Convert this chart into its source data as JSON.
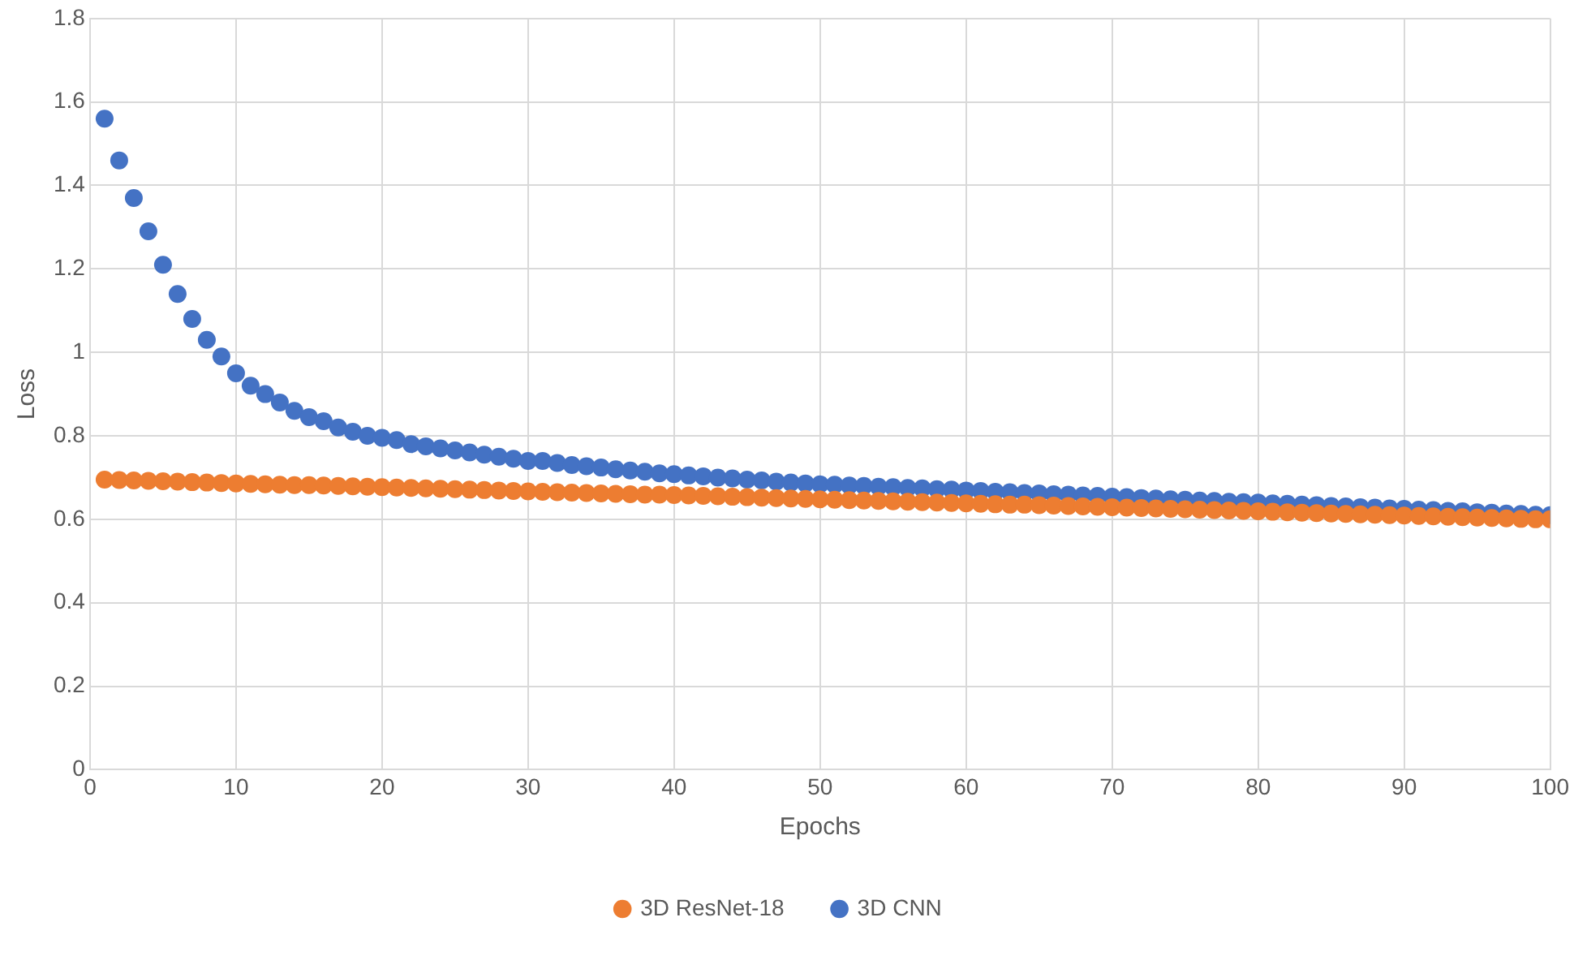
{
  "chart_data": {
    "type": "scatter",
    "xlabel": "Epochs",
    "ylabel": "Loss",
    "xlim": [
      0,
      100
    ],
    "xticks": [
      0,
      10,
      20,
      30,
      40,
      50,
      60,
      70,
      80,
      90,
      100
    ],
    "ylim": [
      0,
      1.8
    ],
    "yticks": [
      0,
      0.2,
      0.4,
      0.6,
      0.8,
      1,
      1.2,
      1.4,
      1.6,
      1.8
    ],
    "grid": true,
    "legend": "bottom",
    "marker": "circle",
    "x": [
      1,
      2,
      3,
      4,
      5,
      6,
      7,
      8,
      9,
      10,
      11,
      12,
      13,
      14,
      15,
      16,
      17,
      18,
      19,
      20,
      21,
      22,
      23,
      24,
      25,
      26,
      27,
      28,
      29,
      30,
      31,
      32,
      33,
      34,
      35,
      36,
      37,
      38,
      39,
      40,
      41,
      42,
      43,
      44,
      45,
      46,
      47,
      48,
      49,
      50,
      51,
      52,
      53,
      54,
      55,
      56,
      57,
      58,
      59,
      60,
      61,
      62,
      63,
      64,
      65,
      66,
      67,
      68,
      69,
      70,
      71,
      72,
      73,
      74,
      75,
      76,
      77,
      78,
      79,
      80,
      81,
      82,
      83,
      84,
      85,
      86,
      87,
      88,
      89,
      90,
      91,
      92,
      93,
      94,
      95,
      96,
      97,
      98,
      99,
      100
    ],
    "series": [
      {
        "name": "3D ResNet-18",
        "color": "#ed7d31",
        "values": [
          0.695,
          0.694,
          0.693,
          0.692,
          0.691,
          0.69,
          0.689,
          0.688,
          0.687,
          0.686,
          0.685,
          0.684,
          0.683,
          0.682,
          0.682,
          0.681,
          0.68,
          0.679,
          0.678,
          0.677,
          0.676,
          0.675,
          0.674,
          0.673,
          0.672,
          0.671,
          0.67,
          0.669,
          0.668,
          0.667,
          0.666,
          0.665,
          0.664,
          0.663,
          0.662,
          0.661,
          0.66,
          0.659,
          0.659,
          0.658,
          0.657,
          0.656,
          0.655,
          0.654,
          0.653,
          0.652,
          0.651,
          0.65,
          0.649,
          0.648,
          0.647,
          0.646,
          0.645,
          0.644,
          0.643,
          0.642,
          0.641,
          0.64,
          0.639,
          0.638,
          0.637,
          0.636,
          0.635,
          0.635,
          0.634,
          0.633,
          0.632,
          0.631,
          0.63,
          0.629,
          0.628,
          0.627,
          0.626,
          0.625,
          0.624,
          0.623,
          0.622,
          0.621,
          0.62,
          0.619,
          0.618,
          0.617,
          0.616,
          0.615,
          0.614,
          0.613,
          0.612,
          0.611,
          0.61,
          0.609,
          0.608,
          0.607,
          0.606,
          0.605,
          0.604,
          0.603,
          0.602,
          0.601,
          0.6,
          0.6
        ]
      },
      {
        "name": "3D CNN",
        "color": "#4472c4",
        "values": [
          1.56,
          1.46,
          1.37,
          1.29,
          1.21,
          1.14,
          1.08,
          1.03,
          0.99,
          0.95,
          0.92,
          0.9,
          0.88,
          0.86,
          0.845,
          0.835,
          0.82,
          0.81,
          0.8,
          0.795,
          0.79,
          0.78,
          0.775,
          0.77,
          0.765,
          0.76,
          0.755,
          0.75,
          0.745,
          0.74,
          0.74,
          0.735,
          0.73,
          0.727,
          0.724,
          0.72,
          0.717,
          0.714,
          0.71,
          0.708,
          0.705,
          0.703,
          0.7,
          0.698,
          0.695,
          0.693,
          0.69,
          0.688,
          0.686,
          0.684,
          0.683,
          0.681,
          0.68,
          0.678,
          0.677,
          0.675,
          0.674,
          0.672,
          0.671,
          0.669,
          0.668,
          0.666,
          0.665,
          0.663,
          0.662,
          0.66,
          0.659,
          0.657,
          0.656,
          0.654,
          0.653,
          0.651,
          0.65,
          0.648,
          0.647,
          0.645,
          0.644,
          0.642,
          0.641,
          0.64,
          0.638,
          0.637,
          0.635,
          0.634,
          0.632,
          0.631,
          0.629,
          0.628,
          0.626,
          0.625,
          0.623,
          0.622,
          0.62,
          0.619,
          0.617,
          0.616,
          0.614,
          0.613,
          0.611,
          0.61
        ]
      }
    ]
  }
}
